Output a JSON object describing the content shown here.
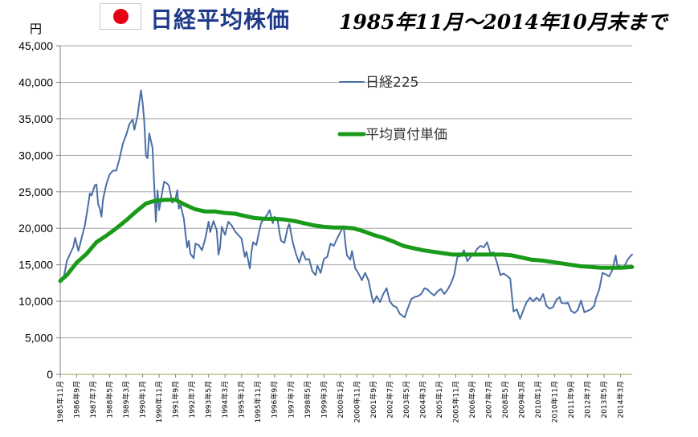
{
  "header": {
    "flag_icon": "japan-flag-icon",
    "title": "日経平均株価",
    "subtitle": "1985年11月〜2014年10月末まで",
    "title_color": "#1f3a8a"
  },
  "chart_data": {
    "type": "line",
    "y_unit_label": "円",
    "ylim": [
      0,
      45000
    ],
    "y_ticks": [
      "0",
      "5,000",
      "10,000",
      "15,000",
      "20,000",
      "25,000",
      "30,000",
      "35,000",
      "40,000",
      "45,000"
    ],
    "y_tick_values": [
      0,
      5000,
      10000,
      15000,
      20000,
      25000,
      30000,
      35000,
      40000,
      45000
    ],
    "x_range": [
      "1985-11",
      "2014-10"
    ],
    "x_ticks": [
      "1985年11月",
      "1986年9月",
      "1987年7月",
      "1988年5月",
      "1989年3月",
      "1990年1月",
      "1990年11月",
      "1991年9月",
      "1992年7月",
      "1993年5月",
      "1994年3月",
      "1995年1月",
      "1995年11月",
      "1996年9月",
      "1997年7月",
      "1998年5月",
      "1999年3月",
      "2000年1月",
      "2000年11月",
      "2001年9月",
      "2002年7月",
      "2003年5月",
      "2004年3月",
      "2005年1月",
      "2005年11月",
      "2006年9月",
      "2007年7月",
      "2008年5月",
      "2009年3月",
      "2010年1月",
      "2010年11月",
      "2011年9月",
      "2012年7月",
      "2013年5月",
      "2014年3月"
    ],
    "x_tick_dates": [
      "1985-11",
      "1986-09",
      "1987-07",
      "1988-05",
      "1989-03",
      "1990-01",
      "1990-11",
      "1991-09",
      "1992-07",
      "1993-05",
      "1994-03",
      "1995-01",
      "1995-11",
      "1996-09",
      "1997-07",
      "1998-05",
      "1999-03",
      "2000-01",
      "2000-11",
      "2001-09",
      "2002-07",
      "2003-05",
      "2004-03",
      "2005-01",
      "2005-11",
      "2006-09",
      "2007-07",
      "2008-05",
      "2009-03",
      "2010-01",
      "2010-11",
      "2011-09",
      "2012-07",
      "2013-05",
      "2014-03"
    ],
    "grid": true,
    "legend": "top-center",
    "series": [
      {
        "name": "日経225",
        "color": "#4a6fa5",
        "points": [
          [
            "1985-11",
            12800
          ],
          [
            "1986-01",
            13100
          ],
          [
            "1986-03",
            15500
          ],
          [
            "1986-05",
            16500
          ],
          [
            "1986-07",
            17500
          ],
          [
            "1986-08",
            18700
          ],
          [
            "1986-10",
            16900
          ],
          [
            "1986-12",
            18700
          ],
          [
            "1987-02",
            20500
          ],
          [
            "1987-04",
            23300
          ],
          [
            "1987-05",
            24800
          ],
          [
            "1987-06",
            24500
          ],
          [
            "1987-08",
            25900
          ],
          [
            "1987-09",
            26000
          ],
          [
            "1987-10",
            23300
          ],
          [
            "1987-11",
            22700
          ],
          [
            "1987-12",
            21600
          ],
          [
            "1988-01",
            24000
          ],
          [
            "1988-03",
            26100
          ],
          [
            "1988-05",
            27400
          ],
          [
            "1988-07",
            27900
          ],
          [
            "1988-09",
            27900
          ],
          [
            "1988-11",
            29600
          ],
          [
            "1989-01",
            31600
          ],
          [
            "1989-03",
            32800
          ],
          [
            "1989-05",
            34300
          ],
          [
            "1989-07",
            34900
          ],
          [
            "1989-08",
            33500
          ],
          [
            "1989-10",
            35500
          ],
          [
            "1989-11",
            37300
          ],
          [
            "1989-12",
            38900
          ],
          [
            "1990-01",
            37200
          ],
          [
            "1990-02",
            34600
          ],
          [
            "1990-03",
            29900
          ],
          [
            "1990-04",
            29600
          ],
          [
            "1990-05",
            33000
          ],
          [
            "1990-07",
            31000
          ],
          [
            "1990-08",
            25900
          ],
          [
            "1990-09",
            20900
          ],
          [
            "1990-10",
            25200
          ],
          [
            "1990-11",
            22500
          ],
          [
            "1990-12",
            23800
          ],
          [
            "1991-02",
            26400
          ],
          [
            "1991-04",
            26100
          ],
          [
            "1991-05",
            25800
          ],
          [
            "1991-07",
            23500
          ],
          [
            "1991-09",
            24100
          ],
          [
            "1991-10",
            25200
          ],
          [
            "1991-11",
            22700
          ],
          [
            "1991-12",
            23200
          ],
          [
            "1992-02",
            21300
          ],
          [
            "1992-03",
            19300
          ],
          [
            "1992-04",
            17400
          ],
          [
            "1992-05",
            18300
          ],
          [
            "1992-06",
            16500
          ],
          [
            "1992-08",
            15900
          ],
          [
            "1992-09",
            17900
          ],
          [
            "1992-11",
            17700
          ],
          [
            "1993-01",
            17000
          ],
          [
            "1993-03",
            18600
          ],
          [
            "1993-05",
            20900
          ],
          [
            "1993-06",
            19500
          ],
          [
            "1993-08",
            21000
          ],
          [
            "1993-10",
            19700
          ],
          [
            "1993-11",
            16400
          ],
          [
            "1993-12",
            17400
          ],
          [
            "1994-01",
            20200
          ],
          [
            "1994-03",
            19100
          ],
          [
            "1994-05",
            20900
          ],
          [
            "1994-07",
            20400
          ],
          [
            "1994-09",
            19600
          ],
          [
            "1994-11",
            19100
          ],
          [
            "1995-01",
            18600
          ],
          [
            "1995-03",
            16100
          ],
          [
            "1995-04",
            16800
          ],
          [
            "1995-06",
            14500
          ],
          [
            "1995-07",
            16700
          ],
          [
            "1995-08",
            18100
          ],
          [
            "1995-10",
            17700
          ],
          [
            "1995-12",
            19900
          ],
          [
            "1996-01",
            20800
          ],
          [
            "1996-03",
            21400
          ],
          [
            "1996-05",
            22000
          ],
          [
            "1996-06",
            22500
          ],
          [
            "1996-08",
            20700
          ],
          [
            "1996-09",
            21600
          ],
          [
            "1996-11",
            21000
          ],
          [
            "1996-12",
            19400
          ],
          [
            "1997-01",
            18300
          ],
          [
            "1997-03",
            18000
          ],
          [
            "1997-05",
            20100
          ],
          [
            "1997-06",
            20600
          ],
          [
            "1997-08",
            18200
          ],
          [
            "1997-10",
            16500
          ],
          [
            "1997-12",
            15300
          ],
          [
            "1998-02",
            16800
          ],
          [
            "1998-04",
            15700
          ],
          [
            "1998-06",
            15800
          ],
          [
            "1998-08",
            14100
          ],
          [
            "1998-10",
            13600
          ],
          [
            "1998-11",
            14900
          ],
          [
            "1999-01",
            13900
          ],
          [
            "1999-03",
            15800
          ],
          [
            "1999-05",
            16100
          ],
          [
            "1999-07",
            17900
          ],
          [
            "1999-09",
            17600
          ],
          [
            "1999-11",
            18600
          ],
          [
            "2000-01",
            19500
          ],
          [
            "2000-03",
            20300
          ],
          [
            "2000-04",
            17900
          ],
          [
            "2000-05",
            16300
          ],
          [
            "2000-07",
            15700
          ],
          [
            "2000-08",
            16900
          ],
          [
            "2000-10",
            14500
          ],
          [
            "2000-12",
            13800
          ],
          [
            "2001-02",
            12900
          ],
          [
            "2001-04",
            13900
          ],
          [
            "2001-06",
            12900
          ],
          [
            "2001-08",
            10700
          ],
          [
            "2001-09",
            9800
          ],
          [
            "2001-11",
            10700
          ],
          [
            "2002-01",
            9900
          ],
          [
            "2002-03",
            11000
          ],
          [
            "2002-05",
            11800
          ],
          [
            "2002-07",
            10000
          ],
          [
            "2002-09",
            9400
          ],
          [
            "2002-11",
            9200
          ],
          [
            "2003-01",
            8300
          ],
          [
            "2003-04",
            7800
          ],
          [
            "2003-06",
            9100
          ],
          [
            "2003-08",
            10300
          ],
          [
            "2003-10",
            10600
          ],
          [
            "2003-12",
            10700
          ],
          [
            "2004-02",
            11000
          ],
          [
            "2004-04",
            11800
          ],
          [
            "2004-06",
            11600
          ],
          [
            "2004-08",
            11100
          ],
          [
            "2004-10",
            10800
          ],
          [
            "2004-12",
            11400
          ],
          [
            "2005-02",
            11700
          ],
          [
            "2005-04",
            11000
          ],
          [
            "2005-06",
            11600
          ],
          [
            "2005-08",
            12400
          ],
          [
            "2005-10",
            13600
          ],
          [
            "2005-12",
            16100
          ],
          [
            "2006-02",
            16200
          ],
          [
            "2006-04",
            17000
          ],
          [
            "2006-06",
            15500
          ],
          [
            "2006-08",
            16100
          ],
          [
            "2006-10",
            16400
          ],
          [
            "2006-12",
            17200
          ],
          [
            "2007-02",
            17600
          ],
          [
            "2007-04",
            17400
          ],
          [
            "2007-06",
            18100
          ],
          [
            "2007-08",
            16600
          ],
          [
            "2007-10",
            16700
          ],
          [
            "2007-12",
            15300
          ],
          [
            "2008-02",
            13600
          ],
          [
            "2008-04",
            13800
          ],
          [
            "2008-06",
            13500
          ],
          [
            "2008-08",
            13100
          ],
          [
            "2008-10",
            8600
          ],
          [
            "2008-12",
            8900
          ],
          [
            "2009-02",
            7600
          ],
          [
            "2009-04",
            8800
          ],
          [
            "2009-06",
            9900
          ],
          [
            "2009-08",
            10500
          ],
          [
            "2009-10",
            10000
          ],
          [
            "2009-12",
            10500
          ],
          [
            "2010-02",
            10100
          ],
          [
            "2010-04",
            11000
          ],
          [
            "2010-06",
            9400
          ],
          [
            "2010-08",
            9000
          ],
          [
            "2010-10",
            9200
          ],
          [
            "2010-12",
            10200
          ],
          [
            "2011-02",
            10600
          ],
          [
            "2011-03",
            9800
          ],
          [
            "2011-05",
            9700
          ],
          [
            "2011-07",
            9800
          ],
          [
            "2011-09",
            8700
          ],
          [
            "2011-11",
            8400
          ],
          [
            "2012-01",
            8800
          ],
          [
            "2012-03",
            10100
          ],
          [
            "2012-05",
            8500
          ],
          [
            "2012-07",
            8700
          ],
          [
            "2012-09",
            8900
          ],
          [
            "2012-11",
            9400
          ],
          [
            "2012-12",
            10400
          ],
          [
            "2013-02",
            11600
          ],
          [
            "2013-04",
            13900
          ],
          [
            "2013-05",
            13800
          ],
          [
            "2013-06",
            13700
          ],
          [
            "2013-08",
            13400
          ],
          [
            "2013-10",
            14300
          ],
          [
            "2013-12",
            16300
          ],
          [
            "2014-01",
            14900
          ],
          [
            "2014-03",
            14800
          ],
          [
            "2014-05",
            14600
          ],
          [
            "2014-07",
            15600
          ],
          [
            "2014-09",
            16200
          ],
          [
            "2014-10",
            16400
          ]
        ]
      },
      {
        "name": "平均買付単価",
        "color": "#1a9a1a",
        "points": [
          [
            "1985-11",
            12800
          ],
          [
            "1986-03",
            13600
          ],
          [
            "1986-09",
            15300
          ],
          [
            "1987-03",
            16500
          ],
          [
            "1987-09",
            18100
          ],
          [
            "1988-03",
            19000
          ],
          [
            "1988-09",
            20000
          ],
          [
            "1989-03",
            21100
          ],
          [
            "1989-09",
            22300
          ],
          [
            "1990-03",
            23400
          ],
          [
            "1990-09",
            23800
          ],
          [
            "1991-03",
            23900
          ],
          [
            "1991-09",
            23900
          ],
          [
            "1992-03",
            23200
          ],
          [
            "1992-09",
            22600
          ],
          [
            "1993-03",
            22300
          ],
          [
            "1993-09",
            22300
          ],
          [
            "1994-03",
            22100
          ],
          [
            "1994-09",
            22000
          ],
          [
            "1995-03",
            21700
          ],
          [
            "1995-09",
            21400
          ],
          [
            "1996-03",
            21300
          ],
          [
            "1996-09",
            21300
          ],
          [
            "1997-03",
            21200
          ],
          [
            "1997-09",
            21000
          ],
          [
            "1998-03",
            20700
          ],
          [
            "1998-09",
            20400
          ],
          [
            "1999-03",
            20200
          ],
          [
            "1999-09",
            20100
          ],
          [
            "2000-03",
            20100
          ],
          [
            "2000-09",
            20000
          ],
          [
            "2001-03",
            19600
          ],
          [
            "2001-09",
            19100
          ],
          [
            "2002-03",
            18700
          ],
          [
            "2002-09",
            18200
          ],
          [
            "2003-03",
            17600
          ],
          [
            "2003-09",
            17300
          ],
          [
            "2004-03",
            17000
          ],
          [
            "2004-09",
            16800
          ],
          [
            "2005-03",
            16600
          ],
          [
            "2005-09",
            16400
          ],
          [
            "2006-03",
            16400
          ],
          [
            "2006-09",
            16400
          ],
          [
            "2007-03",
            16400
          ],
          [
            "2007-09",
            16400
          ],
          [
            "2008-03",
            16400
          ],
          [
            "2008-09",
            16300
          ],
          [
            "2009-03",
            16000
          ],
          [
            "2009-09",
            15700
          ],
          [
            "2010-03",
            15600
          ],
          [
            "2010-09",
            15400
          ],
          [
            "2011-03",
            15200
          ],
          [
            "2011-09",
            15000
          ],
          [
            "2012-03",
            14800
          ],
          [
            "2012-09",
            14700
          ],
          [
            "2013-03",
            14600
          ],
          [
            "2013-09",
            14600
          ],
          [
            "2014-03",
            14600
          ],
          [
            "2014-10",
            14700
          ]
        ]
      }
    ]
  }
}
